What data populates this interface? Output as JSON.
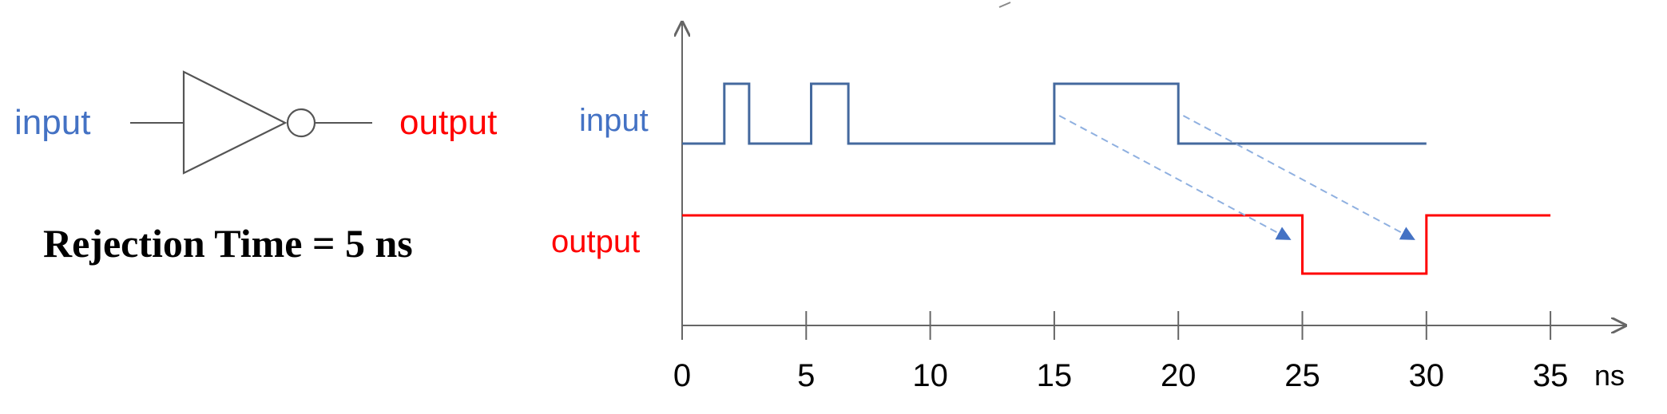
{
  "gate": {
    "input_label": "input",
    "output_label": "output",
    "rejection_text": "Rejection Time = 5 ns"
  },
  "timing": {
    "input_label": "input",
    "output_label": "output",
    "unit_label": "ns",
    "x_ticks": [
      "0",
      "5",
      "10",
      "15",
      "20",
      "25",
      "30",
      "35"
    ],
    "input_wave": [
      [
        0,
        0
      ],
      [
        1.7,
        1
      ],
      [
        2.7,
        0
      ],
      [
        5.2,
        1
      ],
      [
        6.7,
        0
      ],
      [
        15,
        1
      ],
      [
        20,
        0
      ],
      [
        30,
        0
      ]
    ],
    "output_wave": [
      [
        0,
        1
      ],
      [
        25,
        0
      ],
      [
        30,
        1
      ],
      [
        35,
        1
      ]
    ],
    "delay_arrows": [
      {
        "from": 15.2,
        "to": 24.5
      },
      {
        "from": 20.2,
        "to": 29.5
      }
    ]
  },
  "colors": {
    "input": "#4472c4",
    "output": "#ff0000",
    "wave_input": "#44699e",
    "arrow": "#8fb0e0",
    "axis": "#666666",
    "gate": "#555555",
    "text": "#000000"
  }
}
